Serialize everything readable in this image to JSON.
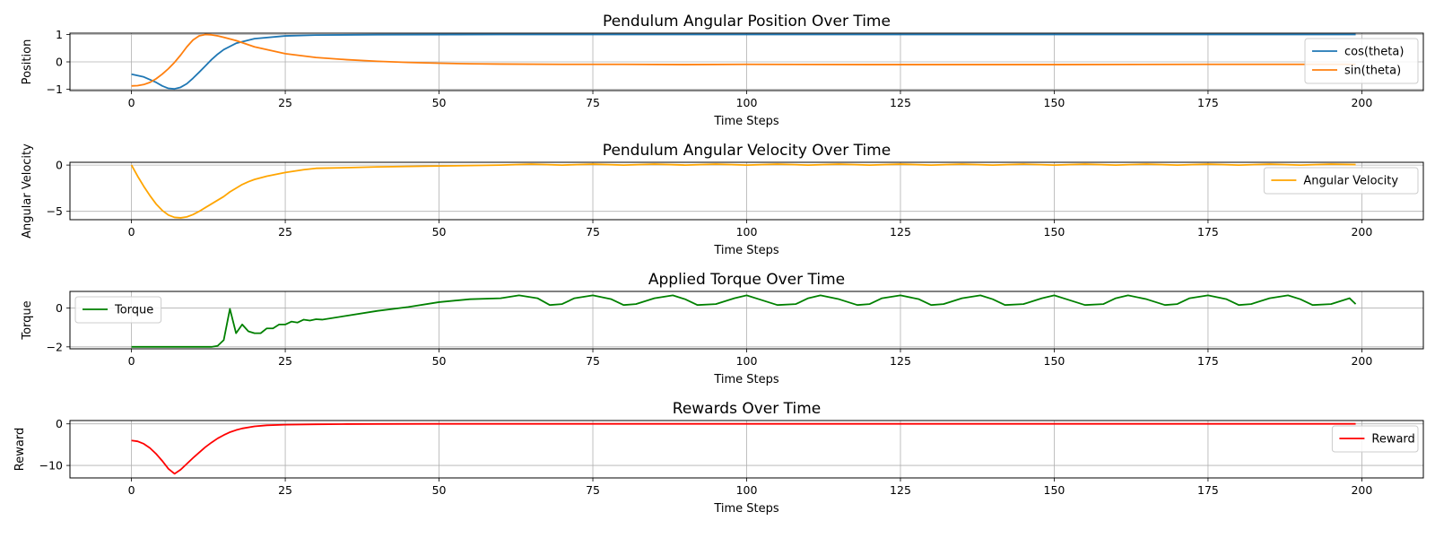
{
  "chart_data": [
    {
      "type": "line",
      "title": "Pendulum Angular Position Over Time",
      "xlabel": "Time Steps",
      "ylabel": "Position",
      "xlim": [
        -10,
        210
      ],
      "ylim": [
        -1.05,
        1.05
      ],
      "xticks": [
        0,
        25,
        50,
        75,
        100,
        125,
        150,
        175,
        200
      ],
      "yticks": [
        -1,
        0,
        1
      ],
      "grid": true,
      "legend_position": "right",
      "series": [
        {
          "name": "cos(theta)",
          "color": "#1f77b4",
          "x": [
            0,
            2,
            4,
            5,
            6,
            7,
            8,
            9,
            10,
            11,
            12,
            13,
            14,
            15,
            17,
            20,
            25,
            30,
            40,
            60,
            199
          ],
          "y": [
            -0.45,
            -0.55,
            -0.75,
            -0.88,
            -0.97,
            -0.99,
            -0.93,
            -0.8,
            -0.6,
            -0.38,
            -0.15,
            0.08,
            0.28,
            0.45,
            0.68,
            0.85,
            0.95,
            0.98,
            0.995,
            1.0,
            1.0
          ]
        },
        {
          "name": "sin(theta)",
          "color": "#ff7f0e",
          "x": [
            0,
            1,
            2,
            3,
            4,
            5,
            6,
            7,
            8,
            9,
            10,
            11,
            12,
            13,
            14,
            15,
            17,
            20,
            25,
            30,
            35,
            40,
            45,
            50,
            55,
            60,
            70,
            80,
            90,
            100,
            120,
            150,
            175,
            199
          ],
          "y": [
            -0.88,
            -0.87,
            -0.83,
            -0.75,
            -0.62,
            -0.45,
            -0.25,
            -0.02,
            0.25,
            0.55,
            0.8,
            0.95,
            1.0,
            0.99,
            0.95,
            0.9,
            0.78,
            0.55,
            0.3,
            0.16,
            0.08,
            0.02,
            -0.02,
            -0.05,
            -0.07,
            -0.08,
            -0.09,
            -0.09,
            -0.1,
            -0.09,
            -0.1,
            -0.1,
            -0.09,
            -0.09
          ]
        }
      ]
    },
    {
      "type": "line",
      "title": "Pendulum Angular Velocity Over Time",
      "xlabel": "Time Steps",
      "ylabel": "Angular Velocity",
      "xlim": [
        -10,
        210
      ],
      "ylim": [
        -5.9,
        0.3
      ],
      "xticks": [
        0,
        25,
        50,
        75,
        100,
        125,
        150,
        175,
        200
      ],
      "yticks": [
        -5,
        0
      ],
      "grid": true,
      "legend_position": "right",
      "series": [
        {
          "name": "Angular Velocity",
          "color": "orange",
          "x": [
            0,
            1,
            2,
            3,
            4,
            5,
            6,
            7,
            8,
            9,
            10,
            11,
            12,
            13,
            14,
            15,
            16,
            17,
            18,
            19,
            20,
            22,
            25,
            28,
            30,
            35,
            40,
            50,
            60,
            65,
            70,
            75,
            80,
            85,
            90,
            95,
            100,
            105,
            110,
            115,
            120,
            125,
            130,
            135,
            140,
            145,
            150,
            155,
            160,
            165,
            170,
            175,
            180,
            185,
            190,
            195,
            199
          ],
          "y": [
            0.0,
            -1.2,
            -2.3,
            -3.3,
            -4.2,
            -4.9,
            -5.4,
            -5.65,
            -5.7,
            -5.6,
            -5.35,
            -5.0,
            -4.6,
            -4.2,
            -3.8,
            -3.4,
            -2.9,
            -2.5,
            -2.1,
            -1.8,
            -1.55,
            -1.2,
            -0.8,
            -0.5,
            -0.35,
            -0.28,
            -0.2,
            -0.1,
            0.0,
            0.1,
            0.0,
            0.1,
            0.0,
            0.1,
            0.0,
            0.1,
            0.0,
            0.1,
            0.0,
            0.1,
            0.0,
            0.1,
            0.0,
            0.1,
            0.0,
            0.1,
            0.0,
            0.1,
            0.0,
            0.1,
            0.0,
            0.1,
            0.0,
            0.1,
            0.0,
            0.1,
            0.05
          ]
        }
      ]
    },
    {
      "type": "line",
      "title": "Applied Torque Over Time",
      "xlabel": "Time Steps",
      "ylabel": "Torque",
      "xlim": [
        -10,
        210
      ],
      "ylim": [
        -2.1,
        0.85
      ],
      "xticks": [
        0,
        25,
        50,
        75,
        100,
        125,
        150,
        175,
        200
      ],
      "yticks": [
        -2,
        0
      ],
      "grid": true,
      "legend_position": "left",
      "series": [
        {
          "name": "Torque",
          "color": "green",
          "x": [
            0,
            5,
            10,
            13,
            14,
            15,
            16,
            17,
            18,
            19,
            20,
            21,
            22,
            23,
            24,
            25,
            26,
            27,
            28,
            29,
            30,
            31,
            35,
            40,
            45,
            50,
            55,
            60,
            63,
            66,
            68,
            70,
            72,
            75,
            78,
            80,
            82,
            85,
            88,
            90,
            92,
            95,
            98,
            100,
            102,
            105,
            108,
            110,
            112,
            115,
            118,
            120,
            122,
            125,
            128,
            130,
            132,
            135,
            138,
            140,
            142,
            145,
            148,
            150,
            152,
            155,
            158,
            160,
            162,
            165,
            168,
            170,
            172,
            175,
            178,
            180,
            182,
            185,
            188,
            190,
            192,
            195,
            198,
            199
          ],
          "y": [
            -2.0,
            -2.0,
            -2.0,
            -2.0,
            -1.95,
            -1.65,
            -0.05,
            -1.3,
            -0.85,
            -1.2,
            -1.3,
            -1.3,
            -1.05,
            -1.05,
            -0.85,
            -0.85,
            -0.7,
            -0.75,
            -0.6,
            -0.65,
            -0.58,
            -0.6,
            -0.4,
            -0.15,
            0.05,
            0.3,
            0.45,
            0.5,
            0.65,
            0.5,
            0.15,
            0.2,
            0.5,
            0.65,
            0.45,
            0.15,
            0.2,
            0.5,
            0.65,
            0.45,
            0.15,
            0.2,
            0.5,
            0.65,
            0.45,
            0.15,
            0.2,
            0.5,
            0.65,
            0.45,
            0.15,
            0.2,
            0.5,
            0.65,
            0.45,
            0.15,
            0.2,
            0.5,
            0.65,
            0.45,
            0.15,
            0.2,
            0.5,
            0.65,
            0.45,
            0.15,
            0.2,
            0.5,
            0.65,
            0.45,
            0.15,
            0.2,
            0.5,
            0.65,
            0.45,
            0.15,
            0.2,
            0.5,
            0.65,
            0.45,
            0.15,
            0.2,
            0.5,
            0.2
          ]
        }
      ]
    },
    {
      "type": "line",
      "title": "Rewards Over Time",
      "xlabel": "Time Steps",
      "ylabel": "Reward",
      "xlim": [
        -10,
        210
      ],
      "ylim": [
        -13,
        0.8
      ],
      "xticks": [
        0,
        25,
        50,
        75,
        100,
        125,
        150,
        175,
        200
      ],
      "yticks": [
        -10,
        0
      ],
      "grid": true,
      "legend_position": "right",
      "series": [
        {
          "name": "Reward",
          "color": "red",
          "x": [
            0,
            1,
            2,
            3,
            4,
            5,
            6,
            7,
            8,
            9,
            10,
            11,
            12,
            13,
            14,
            15,
            16,
            17,
            18,
            20,
            22,
            25,
            30,
            35,
            40,
            50,
            199
          ],
          "y": [
            -4.0,
            -4.2,
            -4.8,
            -5.8,
            -7.2,
            -8.9,
            -10.8,
            -12.0,
            -11.0,
            -9.6,
            -8.2,
            -6.9,
            -5.6,
            -4.5,
            -3.5,
            -2.7,
            -2.0,
            -1.5,
            -1.1,
            -0.6,
            -0.35,
            -0.2,
            -0.1,
            -0.05,
            -0.02,
            0.0,
            0.0
          ]
        }
      ]
    }
  ]
}
